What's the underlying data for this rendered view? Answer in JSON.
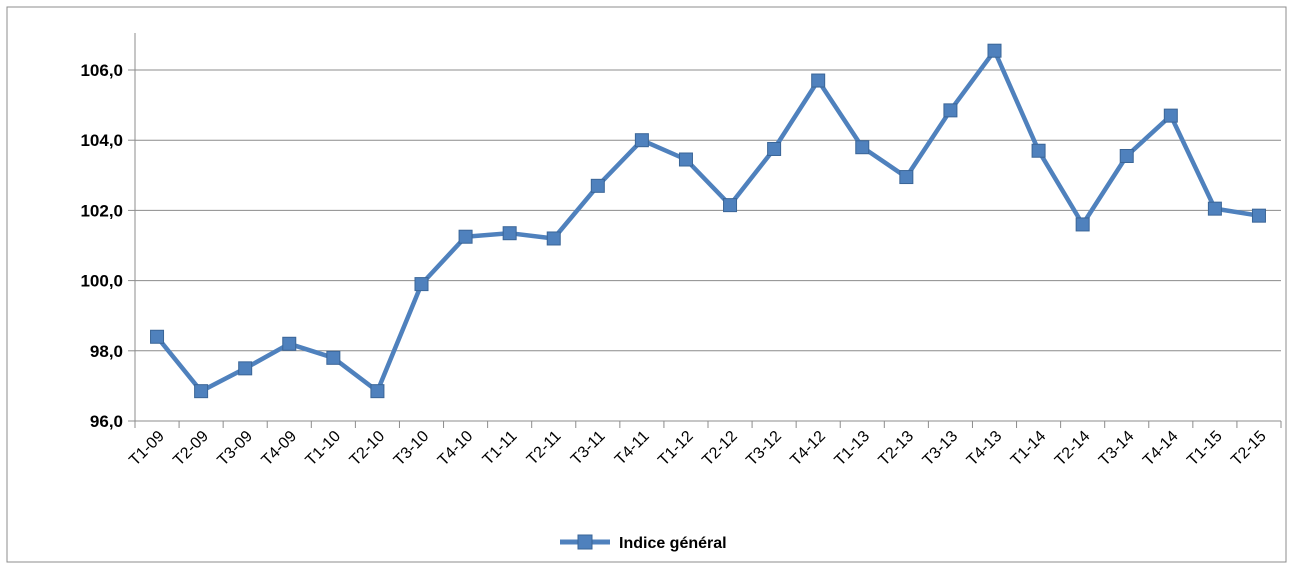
{
  "chart_data": {
    "type": "line",
    "title": "",
    "xlabel": "",
    "ylabel": "",
    "ylim": [
      96,
      107
    ],
    "yticks": [
      "96,0",
      "98,0",
      "100,0",
      "102,0",
      "104,0",
      "106,0"
    ],
    "ytick_values": [
      96,
      98,
      100,
      102,
      104,
      106
    ],
    "grid": "horizontal",
    "legend_position": "bottom",
    "categories": [
      "T1-09",
      "T2-09",
      "T3-09",
      "T4-09",
      "T1-10",
      "T2-10",
      "T3-10",
      "T4-10",
      "T1-11",
      "T2-11",
      "T3-11",
      "T4-11",
      "T1-12",
      "T2-12",
      "T3-12",
      "T4-12",
      "T1-13",
      "T2-13",
      "T3-13",
      "T4-13",
      "T1-14",
      "T2-14",
      "T3-14",
      "T4-14",
      "T1-15",
      "T2-15"
    ],
    "series": [
      {
        "name": "Indice général",
        "color": "#4f81bd",
        "marker": "square",
        "values": [
          98.4,
          96.85,
          97.5,
          98.2,
          97.8,
          96.85,
          99.9,
          101.25,
          101.35,
          101.2,
          102.7,
          104.0,
          103.45,
          102.15,
          103.75,
          105.7,
          103.8,
          102.95,
          104.85,
          106.55,
          103.7,
          101.6,
          103.55,
          104.7,
          102.05,
          101.85
        ]
      }
    ]
  }
}
